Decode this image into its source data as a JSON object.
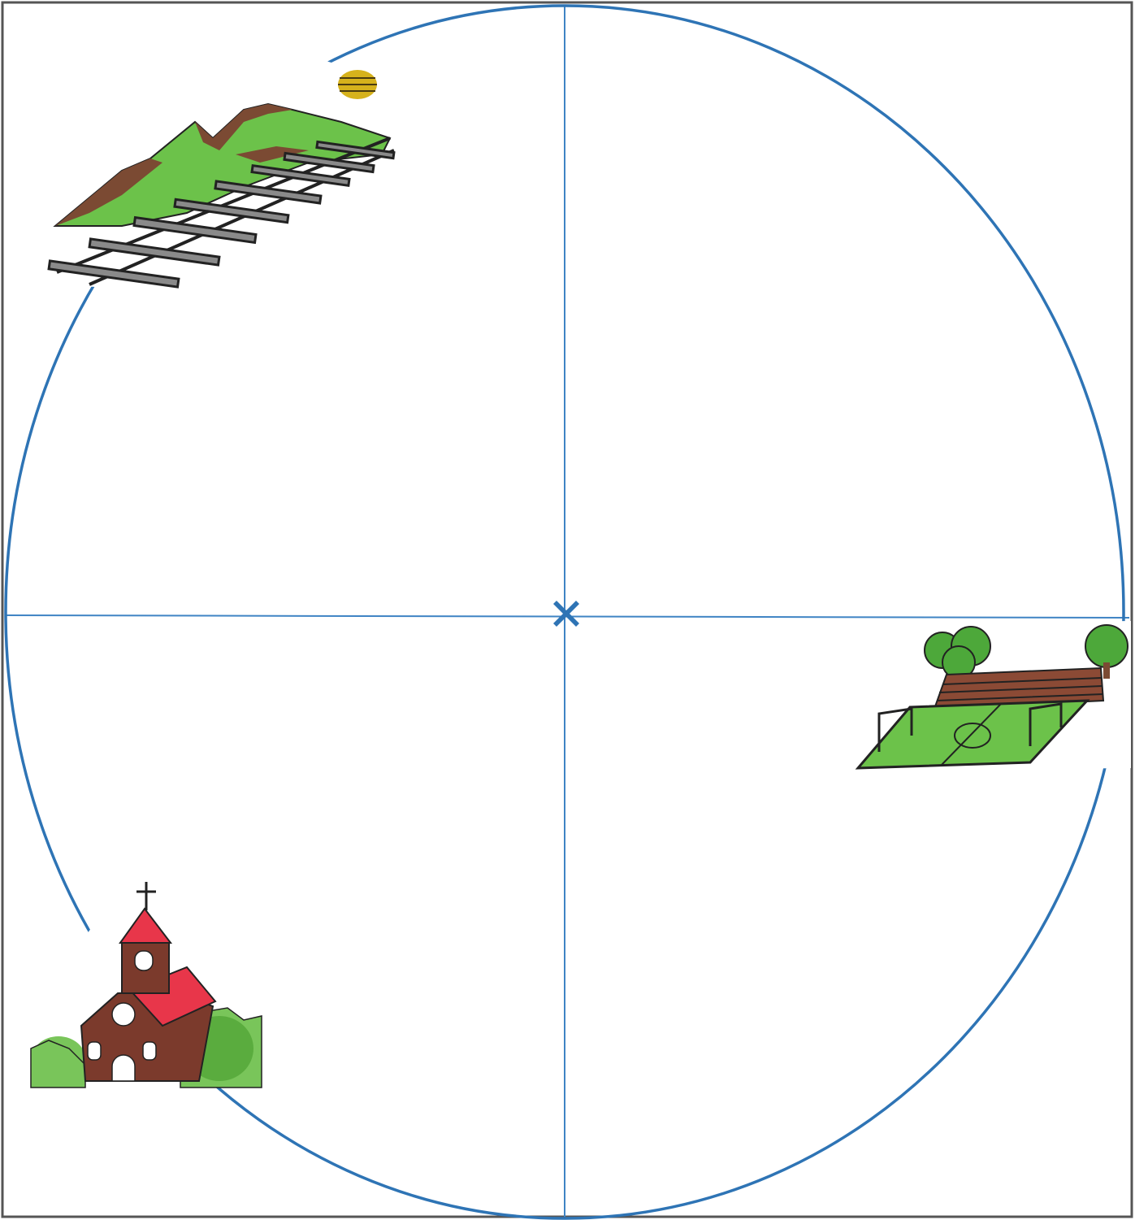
{
  "diagram": {
    "colors": {
      "circle": "#2e74b5",
      "axes": "#3f84c4",
      "center_marker": "#2e74b5",
      "frame": "#555555"
    },
    "center_marker_icon": "x-cross-icon",
    "illustrations": [
      {
        "name": "mountains-railway-illustration",
        "quadrant": "top-left",
        "description_icon": "mountain-railway-sun-icon"
      },
      {
        "name": "football-pitch-illustration",
        "quadrant": "right",
        "description_icon": "soccer-field-stands-icon"
      },
      {
        "name": "church-illustration",
        "quadrant": "bottom-left",
        "description_icon": "church-trees-icon"
      }
    ]
  }
}
